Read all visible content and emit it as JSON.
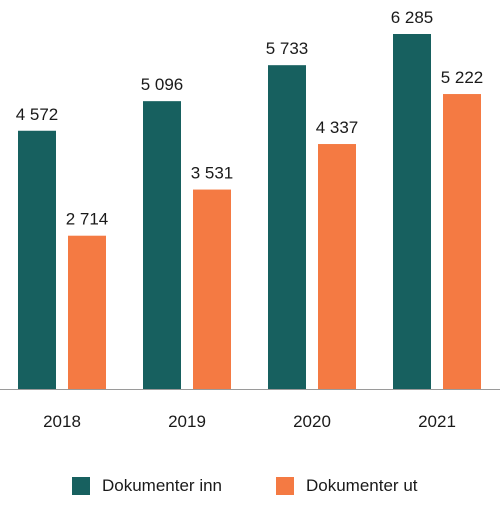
{
  "chart_data": {
    "type": "bar",
    "categories": [
      "2018",
      "2019",
      "2020",
      "2021"
    ],
    "series": [
      {
        "name": "Dokumenter inn",
        "values": [
          4572,
          5096,
          5733,
          6285
        ],
        "labels": [
          "4 572",
          "5 096",
          "5 733",
          "6 285"
        ],
        "color": "#17605f"
      },
      {
        "name": "Dokumenter ut",
        "values": [
          2714,
          3531,
          4337,
          5222
        ],
        "labels": [
          "2 714",
          "3 531",
          "4 337",
          "5 222"
        ],
        "color": "#f47a43"
      }
    ],
    "ylim": [
      0,
      6285
    ],
    "grid": false,
    "legend_position": "bottom",
    "axis_color": "#9a9a9a"
  }
}
